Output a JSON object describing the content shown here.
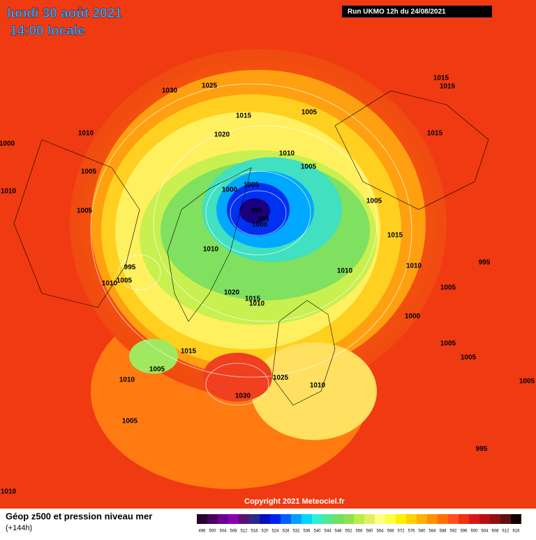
{
  "header": {
    "date": "lundi 30 août 2021",
    "time": "14:00 locale",
    "run": "Run UKMO 12h du 24/08/2021"
  },
  "isobar_labels": [
    1030,
    1025,
    1015,
    1015,
    1005,
    1015,
    1010,
    1020,
    1015,
    1000,
    1010,
    1005,
    1005,
    1000,
    1005,
    1010,
    1005,
    1005,
    995,
    995,
    1000,
    1015,
    1010,
    995,
    1010,
    1010,
    995,
    1010,
    1005,
    1005,
    1020,
    1015,
    1010,
    1000,
    1005,
    1015,
    1005,
    1005,
    1010,
    1025,
    1010,
    1005,
    1030,
    1005,
    995,
    1010
  ],
  "copyright": "Copyright 2021 Meteociel.fr",
  "legend": {
    "title": "Géop z500 et pression niveau mer",
    "lead": "(+144h)",
    "values": [
      496,
      500,
      504,
      508,
      512,
      516,
      520,
      524,
      528,
      532,
      536,
      540,
      544,
      548,
      552,
      556,
      560,
      564,
      568,
      572,
      576,
      580,
      584,
      588,
      592,
      596,
      600,
      604,
      608,
      612,
      616
    ],
    "colors": [
      "#2a0030",
      "#4a0060",
      "#6a0090",
      "#8c00b0",
      "#5a1070",
      "#2a2a8a",
      "#0010c0",
      "#0020f0",
      "#0060ff",
      "#00a0ff",
      "#00d8ff",
      "#30f0d0",
      "#50e890",
      "#70e060",
      "#90e050",
      "#b8f040",
      "#e0f060",
      "#ffff80",
      "#ffff40",
      "#fff000",
      "#ffd000",
      "#ffb000",
      "#ff9000",
      "#ff7000",
      "#ff5020",
      "#f03010",
      "#d81818",
      "#b81010",
      "#901010",
      "#601010",
      "#100000"
    ]
  }
}
